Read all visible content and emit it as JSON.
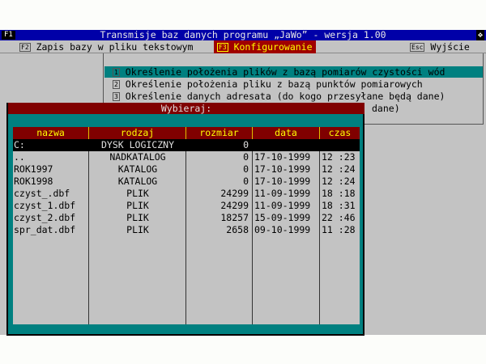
{
  "titlebar": {
    "key": "F1",
    "title": "Transmisje baz danych programu „JaWo” - wersja 1.00",
    "resize_icon": "move-arrows-icon"
  },
  "menubar": [
    {
      "key": "F2",
      "label": "Zapis bazy w pliku tekstowym",
      "active": false
    },
    {
      "key": "F3",
      "label": "Konfigurowanie",
      "active": true
    },
    {
      "key": "Esc",
      "label": "Wyjście",
      "active": false
    }
  ],
  "dropdown": [
    {
      "key": "1",
      "label": "Określenie położenia plików z bazą pomiarów czystości wód",
      "selected": true
    },
    {
      "key": "2",
      "label": "Określenie położenia pliku z bazą punktów pomiarowych",
      "selected": false
    },
    {
      "key": "3",
      "label": "Określenie danych adresata (do kogo przesyłane będą dane)",
      "selected": false
    },
    {
      "key": "",
      "label": "dane)",
      "selected": false
    }
  ],
  "dialog": {
    "title": "Wybieraj:",
    "columns": [
      "nazwa",
      "rodzaj",
      "rozmiar",
      "data",
      "czas"
    ],
    "rows": [
      [
        "C:",
        "DYSK LOGICZNY",
        "0",
        "",
        ""
      ],
      [
        "..",
        "NADKATALOG",
        "0",
        "17-10-1999",
        "12 :23"
      ],
      [
        "ROK1997",
        "KATALOG",
        "0",
        "17-10-1999",
        "12 :24"
      ],
      [
        "ROK1998",
        "KATALOG",
        "0",
        "17-10-1999",
        "12 :24"
      ],
      [
        "czyst_.dbf",
        "PLIK",
        "24299",
        "11-09-1999",
        "18 :18"
      ],
      [
        "czyst_1.dbf",
        "PLIK",
        "24299",
        "11-09-1999",
        "18 :31"
      ],
      [
        "czyst_2.dbf",
        "PLIK",
        "18257",
        "15-09-1999",
        "22 :46"
      ],
      [
        "spr_dat.dbf",
        "PLIK",
        "2658",
        "09-10-1999",
        "11 :28"
      ]
    ],
    "selected_row": 0
  },
  "colors": {
    "title_bg": "#0000a8",
    "accent_red": "#800000",
    "teal": "#008080",
    "header_text": "#ffff00",
    "background": "#c3c3c3"
  }
}
